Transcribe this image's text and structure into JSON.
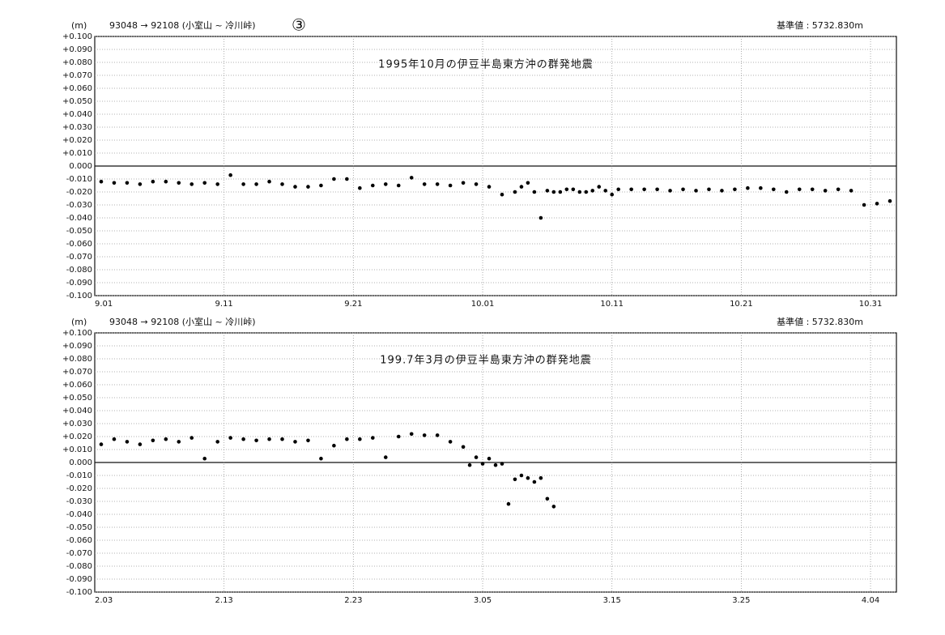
{
  "chart_data": [
    {
      "type": "scatter",
      "unit": "(m)",
      "route": "93048 → 92108  (小室山 ~ 冷川峠)",
      "marker": "③",
      "reference": "基準値 :  5732.830m",
      "title": "1995年10月の伊豆半島東方沖の群発地震",
      "color": "#000000",
      "grid": true,
      "xlim": [
        0,
        62
      ],
      "xticks": [
        {
          "value": 0,
          "label": "9.01"
        },
        {
          "value": 10,
          "label": "9.11"
        },
        {
          "value": 20,
          "label": "9.21"
        },
        {
          "value": 30,
          "label": "10.01"
        },
        {
          "value": 40,
          "label": "10.11"
        },
        {
          "value": 50,
          "label": "10.21"
        },
        {
          "value": 60,
          "label": "10.31"
        }
      ],
      "ylim": [
        -0.1,
        0.1
      ],
      "yticks": [
        {
          "value": 0.1,
          "label": "+0.100"
        },
        {
          "value": 0.09,
          "label": "+0.090"
        },
        {
          "value": 0.08,
          "label": "+0.080"
        },
        {
          "value": 0.07,
          "label": "+0.070"
        },
        {
          "value": 0.06,
          "label": "+0.060"
        },
        {
          "value": 0.05,
          "label": "+0.050"
        },
        {
          "value": 0.04,
          "label": "+0.040"
        },
        {
          "value": 0.03,
          "label": "+0.030"
        },
        {
          "value": 0.02,
          "label": "+0.020"
        },
        {
          "value": 0.01,
          "label": "+0.010"
        },
        {
          "value": 0,
          "label": "0.000"
        },
        {
          "value": -0.01,
          "label": "-0.010"
        },
        {
          "value": -0.02,
          "label": "-0.020"
        },
        {
          "value": -0.03,
          "label": "-0.030"
        },
        {
          "value": -0.04,
          "label": "-0.040"
        },
        {
          "value": -0.05,
          "label": "-0.050"
        },
        {
          "value": -0.06,
          "label": "-0.060"
        },
        {
          "value": -0.07,
          "label": "-0.070"
        },
        {
          "value": -0.08,
          "label": "-0.080"
        },
        {
          "value": -0.09,
          "label": "-0.090"
        },
        {
          "value": -0.1,
          "label": "-0.100"
        }
      ],
      "x": [
        0.5,
        1.5,
        2.5,
        3.5,
        4.5,
        5.5,
        6.5,
        7.5,
        8.5,
        9.5,
        10.5,
        11.5,
        12.5,
        13.5,
        14.5,
        15.5,
        16.5,
        17.5,
        18.5,
        19.5,
        20.5,
        21.5,
        22.5,
        23.5,
        24.5,
        25.5,
        26.5,
        27.5,
        28.5,
        29.5,
        30.5,
        31.5,
        32.5,
        33,
        33.5,
        34,
        34.5,
        35,
        35.5,
        36,
        36.5,
        37,
        37.5,
        38,
        38.5,
        39,
        39.5,
        40,
        40.5,
        41.5,
        42.5,
        43.5,
        44.5,
        45.5,
        46.5,
        47.5,
        48.5,
        49.5,
        50.5,
        51.5,
        52.5,
        53.5,
        54.5,
        55.5,
        56.5,
        57.5,
        58.5,
        59.5,
        60.5,
        61.5
      ],
      "values": [
        -0.012,
        -0.013,
        -0.013,
        -0.014,
        -0.012,
        -0.012,
        -0.013,
        -0.014,
        -0.013,
        -0.014,
        -0.007,
        -0.014,
        -0.014,
        -0.012,
        -0.014,
        -0.016,
        -0.016,
        -0.015,
        -0.01,
        -0.01,
        -0.017,
        -0.015,
        -0.014,
        -0.015,
        -0.009,
        -0.014,
        -0.014,
        -0.015,
        -0.013,
        -0.014,
        -0.016,
        -0.022,
        -0.02,
        -0.016,
        -0.013,
        -0.02,
        -0.04,
        -0.019,
        -0.02,
        -0.02,
        -0.018,
        -0.018,
        -0.02,
        -0.02,
        -0.019,
        -0.016,
        -0.019,
        -0.022,
        -0.018,
        -0.018,
        -0.018,
        -0.018,
        -0.019,
        -0.018,
        -0.019,
        -0.018,
        -0.019,
        -0.018,
        -0.017,
        -0.017,
        -0.018,
        -0.02,
        -0.018,
        -0.018,
        -0.019,
        -0.018,
        -0.019,
        -0.03,
        -0.029,
        -0.027
      ]
    },
    {
      "type": "scatter",
      "unit": "(m)",
      "route": "93048 → 92108  (小室山 ~ 冷川峠)",
      "reference": "基準値 :  5732.830m",
      "title": "199.7年3月の伊豆半島東方沖の群発地震",
      "color": "#000000",
      "grid": true,
      "xlim": [
        0,
        62
      ],
      "xticks": [
        {
          "value": 0,
          "label": "2.03"
        },
        {
          "value": 10,
          "label": "2.13"
        },
        {
          "value": 20,
          "label": "2.23"
        },
        {
          "value": 30,
          "label": "3.05"
        },
        {
          "value": 40,
          "label": "3.15"
        },
        {
          "value": 50,
          "label": "3.25"
        },
        {
          "value": 60,
          "label": "4.04"
        }
      ],
      "ylim": [
        -0.1,
        0.1
      ],
      "yticks": [
        {
          "value": 0.1,
          "label": "+0.100"
        },
        {
          "value": 0.09,
          "label": "+0.090"
        },
        {
          "value": 0.08,
          "label": "+0.080"
        },
        {
          "value": 0.07,
          "label": "+0.070"
        },
        {
          "value": 0.06,
          "label": "+0.060"
        },
        {
          "value": 0.05,
          "label": "+0.050"
        },
        {
          "value": 0.04,
          "label": "+0.040"
        },
        {
          "value": 0.03,
          "label": "+0.030"
        },
        {
          "value": 0.02,
          "label": "+0.020"
        },
        {
          "value": 0.01,
          "label": "+0.010"
        },
        {
          "value": 0,
          "label": "0.000"
        },
        {
          "value": -0.01,
          "label": "-0.010"
        },
        {
          "value": -0.02,
          "label": "-0.020"
        },
        {
          "value": -0.03,
          "label": "-0.030"
        },
        {
          "value": -0.04,
          "label": "-0.040"
        },
        {
          "value": -0.05,
          "label": "-0.050"
        },
        {
          "value": -0.06,
          "label": "-0.060"
        },
        {
          "value": -0.07,
          "label": "-0.070"
        },
        {
          "value": -0.08,
          "label": "-0.080"
        },
        {
          "value": -0.09,
          "label": "-0.090"
        },
        {
          "value": -0.1,
          "label": "-0.100"
        }
      ],
      "x": [
        0.5,
        1.5,
        2.5,
        3.5,
        4.5,
        5.5,
        6.5,
        7.5,
        8.5,
        9.5,
        10.5,
        11.5,
        12.5,
        13.5,
        14.5,
        15.5,
        16.5,
        17.5,
        18.5,
        19.5,
        20.5,
        21.5,
        22.5,
        23.5,
        24.5,
        25.5,
        26.5,
        27.5,
        28.5,
        29,
        29.5,
        30,
        30.5,
        31,
        31.5,
        32,
        32.5,
        33,
        33.5,
        34,
        34.5,
        35,
        35.5
      ],
      "values": [
        0.014,
        0.018,
        0.016,
        0.014,
        0.017,
        0.018,
        0.016,
        0.019,
        0.003,
        0.016,
        0.019,
        0.018,
        0.017,
        0.018,
        0.018,
        0.016,
        0.017,
        0.003,
        0.013,
        0.018,
        0.018,
        0.019,
        0.004,
        0.02,
        0.022,
        0.021,
        0.021,
        0.016,
        0.012,
        -0.002,
        0.004,
        -0.001,
        0.003,
        -0.002,
        -0.001,
        -0.032,
        -0.013,
        -0.01,
        -0.012,
        -0.015,
        -0.012,
        -0.028,
        -0.034
      ]
    }
  ]
}
